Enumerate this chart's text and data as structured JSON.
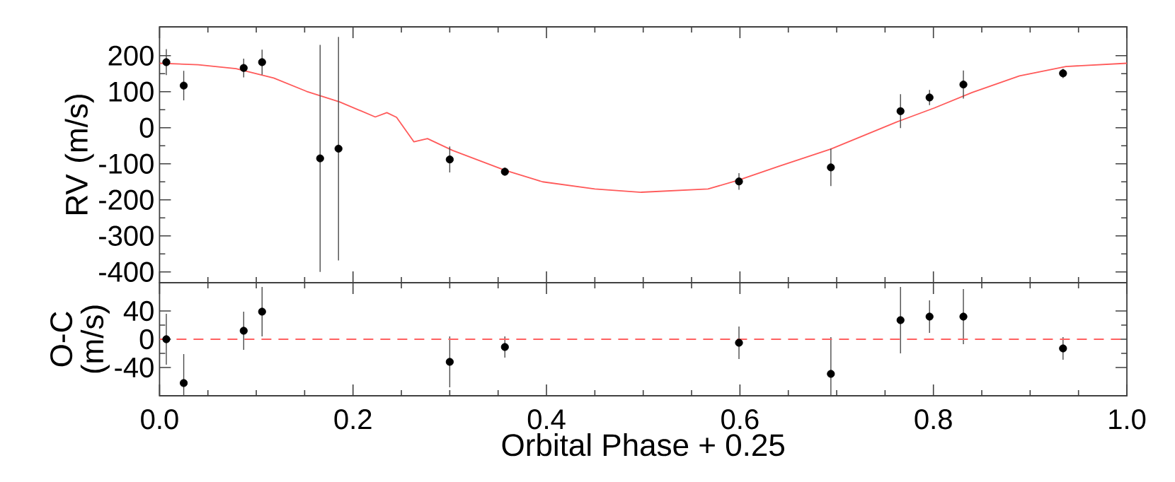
{
  "chart_data": [
    {
      "type": "scatter",
      "ylabel": "RV (m/s)",
      "xlim": [
        0,
        1
      ],
      "ylim": [
        -430,
        280
      ],
      "xticks": [
        0,
        0.2,
        0.4,
        0.6,
        0.8,
        1
      ],
      "yticks": [
        -400,
        -300,
        -200,
        -100,
        0,
        100,
        200
      ],
      "tick_labels": "y",
      "series": [
        {
          "type": "line",
          "color": "#ff5a5a",
          "marker": "none",
          "x": [
            0,
            0.04,
            0.079,
            0.118,
            0.152,
            0.186,
            0.223,
            0.235,
            0.245,
            0.263,
            0.277,
            0.303,
            0.357,
            0.396,
            0.45,
            0.498,
            0.567,
            0.599,
            0.64,
            0.694,
            0.762,
            0.801,
            0.84,
            0.889,
            0.937,
            1.0
          ],
          "values": [
            179,
            175,
            164,
            138,
            101,
            72,
            30,
            42,
            29,
            -39,
            -30,
            -63,
            -118,
            -150,
            -170,
            -179,
            -170,
            -145,
            -107,
            -59,
            16,
            55,
            98,
            144,
            170,
            179
          ]
        },
        {
          "color": "#000000",
          "marker": "circle",
          "x": [
            0.007,
            0.025,
            0.087,
            0.106,
            0.166,
            0.185,
            0.3,
            0.357,
            0.599,
            0.694,
            0.766,
            0.796,
            0.831,
            0.934
          ],
          "values": [
            182,
            117,
            166,
            182,
            -85,
            -58,
            -88,
            -122,
            -149,
            -110,
            46,
            84,
            120,
            151
          ],
          "errors": [
            36,
            41,
            26,
            35,
            315,
            310,
            36,
            11,
            23,
            52,
            47,
            21,
            39,
            13
          ]
        }
      ]
    },
    {
      "type": "scatter",
      "ylabel": "O-C (m/s)",
      "xlabel": "Orbital Phase + 0.25",
      "xlim": [
        0,
        1
      ],
      "ylim": [
        -80,
        80
      ],
      "xticks": [
        {
          "value": 0,
          "label": "0.0"
        },
        {
          "value": 0.2,
          "label": "0.2"
        },
        {
          "value": 0.4,
          "label": "0.4"
        },
        {
          "value": 0.6,
          "label": "0.6"
        },
        {
          "value": 0.8,
          "label": "0.8"
        },
        {
          "value": 1,
          "label": "1.0"
        }
      ],
      "yticks": [
        -40,
        0,
        40
      ],
      "ref_lines": [
        {
          "axis": "y",
          "value": 0,
          "color": "#ff6060",
          "line_style": "dashed"
        }
      ],
      "series": [
        {
          "color": "#000000",
          "marker": "circle",
          "x": [
            0.007,
            0.025,
            0.087,
            0.106,
            0.166,
            0.185,
            0.3,
            0.357,
            0.599,
            0.694,
            0.766,
            0.796,
            0.831,
            0.934
          ],
          "values": [
            0,
            -62,
            12,
            39,
            null,
            null,
            -32,
            -11,
            -5,
            -49,
            27,
            32,
            32,
            -13
          ],
          "errors": [
            36,
            41,
            27,
            35,
            null,
            null,
            36,
            15,
            23,
            52,
            47,
            23,
            39,
            16
          ]
        }
      ]
    }
  ]
}
